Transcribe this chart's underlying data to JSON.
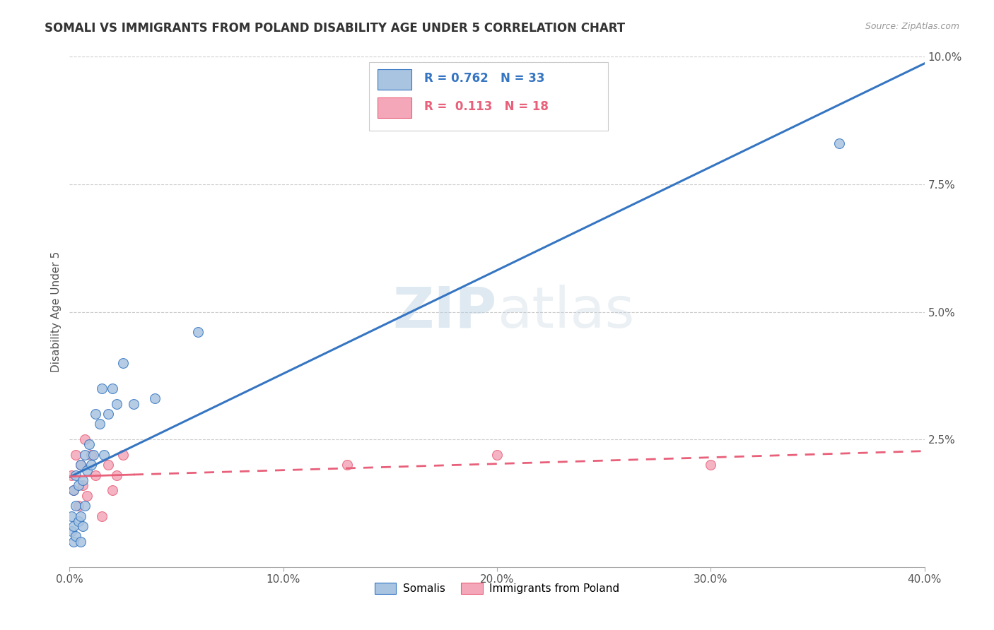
{
  "title": "SOMALI VS IMMIGRANTS FROM POLAND DISABILITY AGE UNDER 5 CORRELATION CHART",
  "source": "Source: ZipAtlas.com",
  "ylabel": "Disability Age Under 5",
  "watermark_zip": "ZIP",
  "watermark_atlas": "atlas",
  "xlim": [
    0,
    0.4
  ],
  "ylim": [
    0,
    0.1
  ],
  "yticks": [
    0.0,
    0.025,
    0.05,
    0.075,
    0.1
  ],
  "xticks": [
    0.0,
    0.1,
    0.2,
    0.3,
    0.4
  ],
  "ytick_labels": [
    "",
    "2.5%",
    "5.0%",
    "7.5%",
    "10.0%"
  ],
  "xtick_labels": [
    "0.0%",
    "10.0%",
    "20.0%",
    "30.0%",
    "40.0%"
  ],
  "somali_color": "#a8c4e0",
  "poland_color": "#f4a7b9",
  "somali_line_color": "#3575c2",
  "poland_line_color": "#e8607a",
  "somali_R": "0.762",
  "somali_N": "33",
  "poland_R": "0.113",
  "poland_N": "18",
  "somali_x": [
    0.001,
    0.001,
    0.002,
    0.002,
    0.002,
    0.003,
    0.003,
    0.003,
    0.004,
    0.004,
    0.005,
    0.005,
    0.005,
    0.006,
    0.006,
    0.007,
    0.007,
    0.008,
    0.009,
    0.01,
    0.011,
    0.012,
    0.014,
    0.015,
    0.016,
    0.018,
    0.02,
    0.022,
    0.025,
    0.03,
    0.04,
    0.06,
    0.36
  ],
  "somali_y": [
    0.007,
    0.01,
    0.005,
    0.008,
    0.015,
    0.006,
    0.012,
    0.018,
    0.009,
    0.016,
    0.005,
    0.01,
    0.02,
    0.008,
    0.017,
    0.012,
    0.022,
    0.019,
    0.024,
    0.02,
    0.022,
    0.03,
    0.028,
    0.035,
    0.022,
    0.03,
    0.035,
    0.032,
    0.04,
    0.032,
    0.033,
    0.046,
    0.083
  ],
  "poland_x": [
    0.001,
    0.002,
    0.003,
    0.004,
    0.005,
    0.006,
    0.007,
    0.008,
    0.01,
    0.012,
    0.015,
    0.018,
    0.02,
    0.022,
    0.025,
    0.13,
    0.2,
    0.3
  ],
  "poland_y": [
    0.018,
    0.015,
    0.022,
    0.012,
    0.02,
    0.016,
    0.025,
    0.014,
    0.022,
    0.018,
    0.01,
    0.02,
    0.015,
    0.018,
    0.022,
    0.02,
    0.022,
    0.02
  ],
  "legend_somali": "Somalis",
  "legend_poland": "Immigrants from Poland",
  "background_color": "#ffffff",
  "grid_color": "#cccccc"
}
